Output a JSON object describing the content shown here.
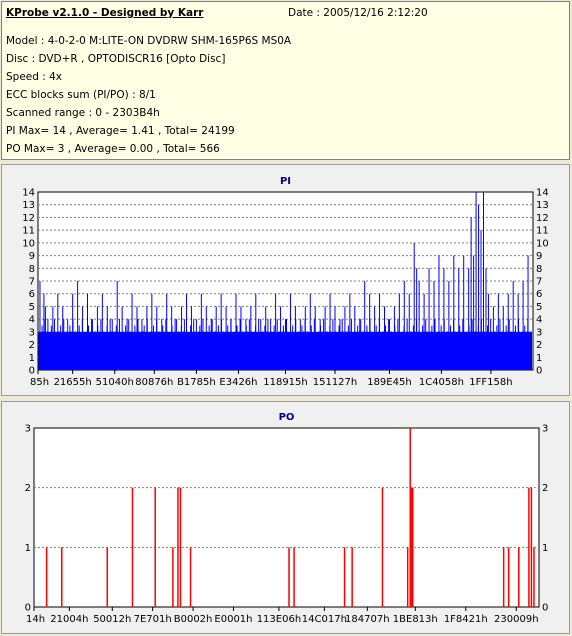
{
  "info": {
    "title": "KProbe v2.1.0 - Designed by Karr",
    "date": "Date : 2005/12/16 2:12:20",
    "lines": [
      "Model : 4-0-2-0 M:LITE-ON DVDRW SHM-165P6S MS0A",
      "Disc : DVD+R , OPTODISCR16 [Opto Disc]",
      "Speed : 4x",
      "ECC blocks sum (PI/PO) : 8/1",
      "Scanned range : 0 - 2303B4h",
      "PI Max= 14 , Average= 1.41 , Total= 24199",
      "PO Max= 3 , Average= 0.00 , Total= 566"
    ]
  },
  "chart_data": [
    {
      "type": "bar",
      "title": "PI",
      "color": "#0000ff",
      "ylim": [
        0,
        14
      ],
      "yticks": [
        0,
        1,
        2,
        3,
        4,
        5,
        6,
        7,
        8,
        9,
        10,
        11,
        12,
        13,
        14
      ],
      "xtick_labels": [
        "85h",
        "21655h",
        "51040h",
        "80876h",
        "B1785h",
        "E3426h",
        "118915h",
        "151127h",
        "189E45h",
        "1C4058h",
        "1FF158h"
      ],
      "xtick_fracs": [
        0.0,
        0.07,
        0.155,
        0.235,
        0.32,
        0.405,
        0.5,
        0.6,
        0.71,
        0.815,
        0.915
      ],
      "spikes": [
        [
          0.004,
          7
        ],
        [
          0.012,
          6
        ],
        [
          0.015,
          5
        ],
        [
          0.02,
          4
        ],
        [
          0.03,
          5
        ],
        [
          0.04,
          6
        ],
        [
          0.05,
          5
        ],
        [
          0.06,
          4
        ],
        [
          0.07,
          6
        ],
        [
          0.08,
          7
        ],
        [
          0.09,
          5
        ],
        [
          0.1,
          6
        ],
        [
          0.11,
          4
        ],
        [
          0.12,
          5
        ],
        [
          0.13,
          6
        ],
        [
          0.14,
          5
        ],
        [
          0.15,
          4
        ],
        [
          0.16,
          7
        ],
        [
          0.17,
          5
        ],
        [
          0.18,
          4
        ],
        [
          0.19,
          6
        ],
        [
          0.2,
          5
        ],
        [
          0.21,
          4
        ],
        [
          0.22,
          5
        ],
        [
          0.23,
          6
        ],
        [
          0.24,
          5
        ],
        [
          0.25,
          4
        ],
        [
          0.26,
          6
        ],
        [
          0.27,
          5
        ],
        [
          0.28,
          4
        ],
        [
          0.29,
          5
        ],
        [
          0.3,
          6
        ],
        [
          0.31,
          5
        ],
        [
          0.32,
          4
        ],
        [
          0.33,
          6
        ],
        [
          0.34,
          5
        ],
        [
          0.35,
          4
        ],
        [
          0.36,
          5
        ],
        [
          0.37,
          6
        ],
        [
          0.38,
          5
        ],
        [
          0.39,
          4
        ],
        [
          0.4,
          6
        ],
        [
          0.41,
          5
        ],
        [
          0.42,
          4
        ],
        [
          0.43,
          5
        ],
        [
          0.44,
          6
        ],
        [
          0.45,
          4
        ],
        [
          0.46,
          5
        ],
        [
          0.47,
          4
        ],
        [
          0.48,
          6
        ],
        [
          0.49,
          5
        ],
        [
          0.5,
          4
        ],
        [
          0.51,
          6
        ],
        [
          0.52,
          5
        ],
        [
          0.53,
          4
        ],
        [
          0.54,
          5
        ],
        [
          0.55,
          6
        ],
        [
          0.56,
          5
        ],
        [
          0.57,
          4
        ],
        [
          0.58,
          5
        ],
        [
          0.59,
          6
        ],
        [
          0.6,
          5
        ],
        [
          0.61,
          4
        ],
        [
          0.62,
          5
        ],
        [
          0.63,
          6
        ],
        [
          0.64,
          5
        ],
        [
          0.65,
          4
        ],
        [
          0.66,
          7
        ],
        [
          0.67,
          6
        ],
        [
          0.68,
          5
        ],
        [
          0.69,
          6
        ],
        [
          0.7,
          5
        ],
        [
          0.71,
          4
        ],
        [
          0.72,
          5
        ],
        [
          0.73,
          6
        ],
        [
          0.74,
          7
        ],
        [
          0.75,
          6
        ],
        [
          0.76,
          10
        ],
        [
          0.765,
          8
        ],
        [
          0.77,
          7
        ],
        [
          0.78,
          6
        ],
        [
          0.79,
          8
        ],
        [
          0.8,
          7
        ],
        [
          0.81,
          9
        ],
        [
          0.82,
          8
        ],
        [
          0.83,
          7
        ],
        [
          0.84,
          9
        ],
        [
          0.85,
          8
        ],
        [
          0.86,
          9
        ],
        [
          0.87,
          8
        ],
        [
          0.875,
          12
        ],
        [
          0.88,
          9
        ],
        [
          0.885,
          14
        ],
        [
          0.89,
          13
        ],
        [
          0.895,
          11
        ],
        [
          0.9,
          14
        ],
        [
          0.905,
          8
        ],
        [
          0.91,
          6
        ],
        [
          0.92,
          5
        ],
        [
          0.93,
          6
        ],
        [
          0.94,
          5
        ],
        [
          0.95,
          6
        ],
        [
          0.96,
          7
        ],
        [
          0.97,
          6
        ],
        [
          0.98,
          7
        ],
        [
          0.99,
          9
        ]
      ]
    },
    {
      "type": "bar",
      "title": "PO",
      "color": "#ff0000",
      "ylim": [
        0,
        3
      ],
      "yticks": [
        0,
        1,
        2,
        3
      ],
      "xtick_labels": [
        "14h",
        "21004h",
        "50012h",
        "7E701h",
        "B0002h",
        "E0001h",
        "113E06h",
        "14C017h",
        "184707h",
        "1BE813h",
        "1F8421h",
        "230009h"
      ],
      "xtick_fracs": [
        0.0,
        0.07,
        0.155,
        0.235,
        0.315,
        0.395,
        0.485,
        0.575,
        0.66,
        0.755,
        0.855,
        0.955
      ],
      "spikes": [
        [
          0.025,
          1
        ],
        [
          0.055,
          1
        ],
        [
          0.145,
          1
        ],
        [
          0.195,
          2
        ],
        [
          0.24,
          2
        ],
        [
          0.275,
          1
        ],
        [
          0.285,
          2
        ],
        [
          0.29,
          2
        ],
        [
          0.31,
          1
        ],
        [
          0.505,
          1
        ],
        [
          0.515,
          1
        ],
        [
          0.615,
          1
        ],
        [
          0.63,
          1
        ],
        [
          0.69,
          2
        ],
        [
          0.74,
          1
        ],
        [
          0.745,
          3
        ],
        [
          0.748,
          2
        ],
        [
          0.75,
          2
        ],
        [
          0.93,
          1
        ],
        [
          0.94,
          1
        ],
        [
          0.96,
          1
        ],
        [
          0.98,
          2
        ],
        [
          0.985,
          2
        ],
        [
          0.99,
          1
        ]
      ]
    }
  ]
}
